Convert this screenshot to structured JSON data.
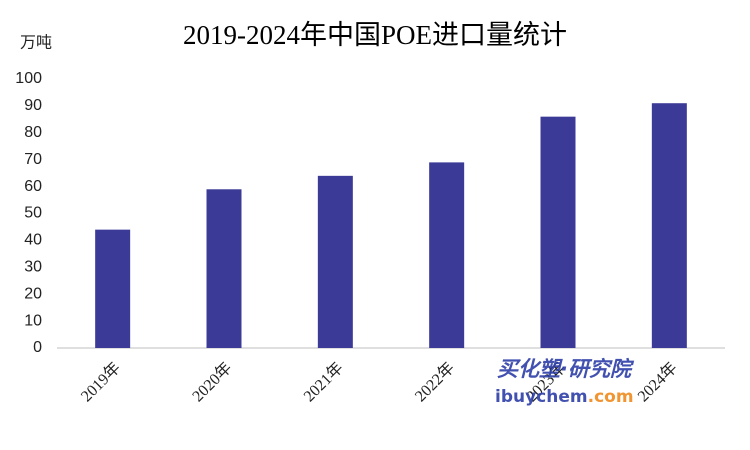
{
  "chart_data": {
    "type": "bar",
    "title": "2019-2024年中国POE进口量统计",
    "y_unit": "万吨",
    "categories": [
      "2019年",
      "2020年",
      "2021年",
      "2022年",
      "2023年",
      "2024年"
    ],
    "values": [
      44,
      59,
      64,
      69,
      86,
      91
    ],
    "color": "#3b3a97",
    "ylim": [
      0,
      100
    ],
    "yticks": [
      0,
      10,
      20,
      30,
      40,
      50,
      60,
      70,
      80,
      90,
      100
    ],
    "grid": false,
    "watermark": {
      "brand": "买化塑·研究院",
      "site_main": "ibuychem",
      "site_suffix": ".com"
    }
  }
}
